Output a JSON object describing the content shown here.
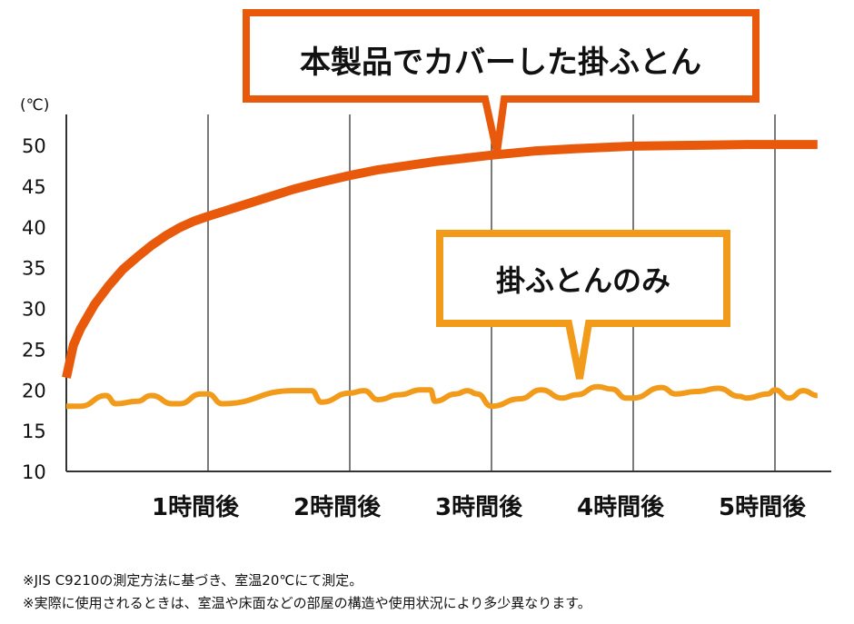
{
  "chart_data": {
    "type": "line",
    "y_unit": "(℃)",
    "ylim": [
      10,
      52
    ],
    "y_ticks": [
      50,
      45,
      40,
      35,
      30,
      25,
      20,
      15,
      10
    ],
    "xlim": [
      0,
      5.3
    ],
    "x_ticks": [
      1,
      2,
      3,
      4,
      5
    ],
    "x_tick_labels": [
      "1時間後",
      "2時間後",
      "3時間後",
      "4時間後",
      "5時間後"
    ],
    "grid": "vertical",
    "colors": {
      "covered": "#e8590c",
      "only": "#f29a1a",
      "axis": "#333333"
    },
    "series": [
      {
        "name": "本製品でカバーした掛ふとん",
        "x": [
          0,
          0.05,
          0.1,
          0.2,
          0.3,
          0.4,
          0.5,
          0.6,
          0.7,
          0.8,
          0.9,
          1.0,
          1.2,
          1.4,
          1.6,
          1.8,
          2.0,
          2.2,
          2.4,
          2.6,
          2.8,
          3.0,
          3.3,
          3.6,
          4.0,
          4.4,
          4.8,
          5.2,
          5.3
        ],
        "values": [
          21.5,
          25.5,
          27.5,
          30.5,
          32.8,
          34.8,
          36.3,
          37.7,
          38.9,
          39.9,
          40.7,
          41.3,
          42.4,
          43.5,
          44.6,
          45.5,
          46.3,
          47.0,
          47.5,
          48.0,
          48.4,
          48.8,
          49.3,
          49.6,
          49.9,
          50.0,
          50.1,
          50.1,
          50.1
        ]
      },
      {
        "name": "掛ふとんのみ",
        "x": [
          0,
          0.1,
          0.28,
          0.35,
          0.5,
          0.6,
          0.75,
          0.8,
          0.95,
          1.0,
          1.1,
          1.6,
          1.73,
          1.8,
          2.0,
          2.1,
          2.2,
          2.35,
          2.5,
          2.57,
          2.6,
          2.75,
          2.83,
          2.9,
          3.0,
          3.2,
          3.35,
          3.5,
          3.6,
          3.75,
          3.85,
          3.95,
          4.0,
          4.2,
          4.3,
          4.45,
          4.6,
          4.75,
          4.8,
          4.95,
          5.0,
          5.1,
          5.2,
          5.3
        ],
        "values": [
          18.0,
          18.0,
          19.3,
          18.3,
          18.6,
          19.3,
          18.3,
          18.3,
          19.5,
          19.5,
          18.3,
          19.9,
          19.9,
          18.5,
          19.6,
          19.9,
          18.8,
          19.4,
          20.0,
          20.0,
          18.6,
          19.5,
          19.9,
          19.5,
          18.0,
          18.9,
          20.0,
          19.0,
          19.4,
          20.4,
          20.1,
          19.0,
          19.0,
          20.3,
          19.5,
          19.8,
          20.2,
          19.2,
          19.0,
          19.5,
          20.0,
          19.0,
          19.9,
          19.3
        ]
      }
    ],
    "annotations": [
      "本製品でカバーした掛ふとん",
      "掛ふとんのみ"
    ]
  },
  "notes": [
    "※JIS C9210の測定方法に基づき、室温20℃にて測定。",
    "※実際に使用されるときは、室温や床面などの部屋の構造や使用状況により多少異なります。"
  ]
}
